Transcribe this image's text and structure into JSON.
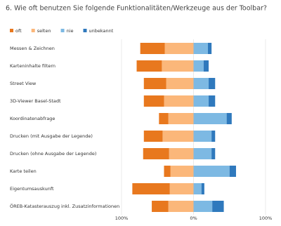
{
  "chart_data": {
    "type": "diverging_bar",
    "title": "6.  Wie oft benutzen Sie folgende Funktionalitäten/Werkzeuge aus der Toolbar?",
    "categories": [
      "Messen & Zeichnen",
      "Karteninhalte filtern",
      "Street View",
      "3D-Viewer Basel-Stadt",
      "Koordinatenabfrage",
      "Drucken (mit Ausgabe der Legende)",
      "Drucken (ohne Ausgabe der Legende)",
      "Karte teilen",
      "Eigentumsauskunft",
      "ÖREB-Katasterauszug inkl. Zusatzinformationen"
    ],
    "series": [
      {
        "name": "oft",
        "color": "#e8781e",
        "values": [
          34,
          35,
          31,
          28,
          13,
          26,
          36,
          9,
          52,
          23
        ]
      },
      {
        "name": "selten",
        "color": "#fbb77a",
        "values": [
          40,
          44,
          38,
          41,
          35,
          43,
          34,
          32,
          33,
          35
        ]
      },
      {
        "name": "nie",
        "color": "#7db9e3",
        "values": [
          20,
          14,
          21,
          21,
          46,
          25,
          25,
          50,
          11,
          26
        ]
      },
      {
        "name": "unbekannt",
        "color": "#2f79bd",
        "values": [
          5,
          7,
          9,
          9,
          7,
          5,
          5,
          9,
          4,
          16
        ]
      }
    ],
    "xlim": [
      -100,
      100
    ],
    "xticks": [
      {
        "value": -100,
        "label": "100%"
      },
      {
        "value": 0,
        "label": "0%"
      },
      {
        "value": 100,
        "label": "100%"
      }
    ],
    "grid": true
  }
}
